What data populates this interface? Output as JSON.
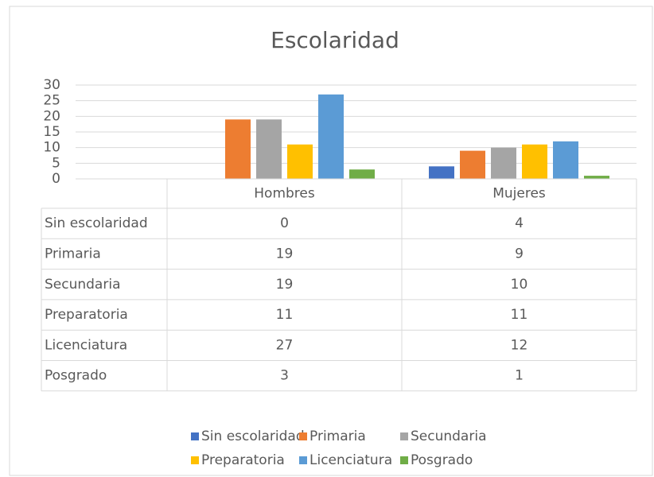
{
  "chart_data": {
    "type": "bar",
    "title": "Escolaridad",
    "categories": [
      "Hombres",
      "Mujeres"
    ],
    "series": [
      {
        "name": "Sin escolaridad",
        "color": "#4472c4",
        "values": [
          0,
          4
        ]
      },
      {
        "name": "Primaria",
        "color": "#ed7d31",
        "values": [
          19,
          9
        ]
      },
      {
        "name": "Secundaria",
        "color": "#a5a5a5",
        "values": [
          19,
          10
        ]
      },
      {
        "name": "Preparatoria",
        "color": "#ffc000",
        "values": [
          11,
          11
        ]
      },
      {
        "name": "Licenciatura",
        "color": "#5b9bd5",
        "values": [
          27,
          12
        ]
      },
      {
        "name": "Posgrado",
        "color": "#70ad47",
        "values": [
          3,
          1
        ]
      }
    ],
    "ylim": [
      0,
      30
    ],
    "yticks": [
      0,
      5,
      10,
      15,
      20,
      25,
      30
    ],
    "grid": true
  }
}
